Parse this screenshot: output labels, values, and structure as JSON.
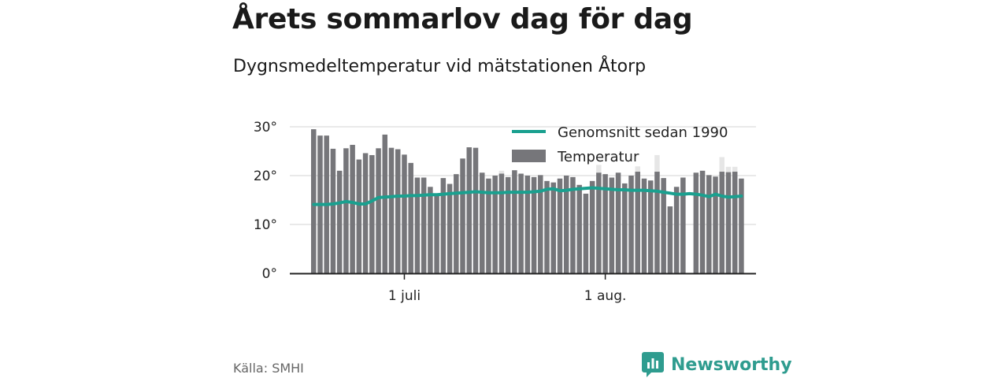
{
  "header": {
    "title": "Årets sommarlov dag för dag",
    "subtitle": "Dygnsmedeltemperatur vid mätstationen Åtorp"
  },
  "footer": {
    "source": "Källa: SMHI",
    "brand": "Newsworthy"
  },
  "colors": {
    "bar": "#76767a",
    "bar_light": "#e6e6e6",
    "average_line": "#1aa08f",
    "axis": "#222222",
    "grid": "#e2e2e2",
    "brand": "#2f9c8f"
  },
  "chart_data": {
    "type": "bar",
    "title": "Årets sommarlov dag för dag",
    "subtitle": "Dygnsmedeltemperatur vid mätstationen Åtorp",
    "ylim": [
      0,
      30
    ],
    "yticks": [
      0,
      10,
      20,
      30
    ],
    "ytick_labels": [
      "0°",
      "10°",
      "20°",
      "30°"
    ],
    "x_start_date": "2018-06-17",
    "x_end_date": "2018-08-20",
    "xticks": [
      {
        "date": "2018-07-01",
        "label": "1 juli"
      },
      {
        "date": "2018-08-01",
        "label": "1 aug."
      }
    ],
    "grid": true,
    "legend": {
      "position": "top-right",
      "entries": [
        {
          "name": "Genomsnitt sedan 1990",
          "kind": "line"
        },
        {
          "name": "Temperatur",
          "kind": "bar"
        }
      ]
    },
    "series": [
      {
        "name": "Temperatur",
        "type": "bar",
        "values": [
          29.5,
          28.2,
          28.2,
          25.5,
          21.0,
          25.6,
          26.3,
          23.3,
          24.6,
          24.2,
          25.6,
          28.4,
          25.7,
          25.4,
          24.3,
          22.6,
          19.6,
          19.6,
          17.7,
          16.0,
          19.5,
          18.3,
          20.3,
          23.5,
          25.8,
          25.7,
          20.6,
          19.4,
          20.0,
          20.4,
          19.7,
          21.1,
          20.4,
          20.0,
          19.7,
          20.1,
          18.9,
          18.6,
          19.4,
          20.0,
          19.7,
          18.1,
          16.3,
          18.9,
          20.6,
          20.3,
          19.6,
          20.6,
          18.4,
          20.0,
          20.8,
          19.4,
          19.0,
          20.8,
          19.5,
          13.7,
          17.7,
          19.6,
          null,
          20.6,
          21.0,
          20.1,
          19.8,
          20.8,
          20.7,
          20.8,
          19.4
        ]
      },
      {
        "name": "Maxvärde",
        "type": "bar",
        "values": [
          null,
          null,
          null,
          null,
          null,
          null,
          null,
          null,
          null,
          null,
          null,
          null,
          null,
          null,
          null,
          null,
          null,
          null,
          null,
          null,
          null,
          null,
          null,
          null,
          null,
          null,
          null,
          null,
          null,
          21.0,
          null,
          null,
          null,
          null,
          null,
          null,
          null,
          null,
          null,
          null,
          null,
          null,
          null,
          null,
          22.2,
          null,
          null,
          null,
          null,
          null,
          21.9,
          null,
          null,
          24.2,
          null,
          null,
          null,
          null,
          null,
          null,
          null,
          null,
          null,
          23.8,
          21.8,
          21.8,
          null
        ]
      },
      {
        "name": "Genomsnitt sedan 1990",
        "type": "line",
        "values": [
          14.1,
          14.1,
          14.1,
          14.2,
          14.4,
          14.7,
          14.5,
          14.2,
          14.2,
          14.8,
          15.5,
          15.6,
          15.7,
          15.8,
          15.8,
          15.9,
          15.9,
          16.0,
          16.1,
          16.1,
          16.2,
          16.3,
          16.4,
          16.5,
          16.6,
          16.7,
          16.6,
          16.5,
          16.5,
          16.5,
          16.6,
          16.6,
          16.6,
          16.6,
          16.7,
          16.8,
          17.2,
          17.3,
          16.9,
          17.0,
          17.2,
          17.3,
          17.4,
          17.5,
          17.4,
          17.3,
          17.2,
          17.1,
          17.1,
          17.0,
          17.0,
          17.0,
          16.9,
          16.8,
          16.6,
          16.4,
          16.2,
          16.2,
          16.3,
          16.2,
          16.0,
          15.7,
          16.2,
          15.8,
          15.6,
          15.7,
          15.8
        ]
      }
    ]
  }
}
